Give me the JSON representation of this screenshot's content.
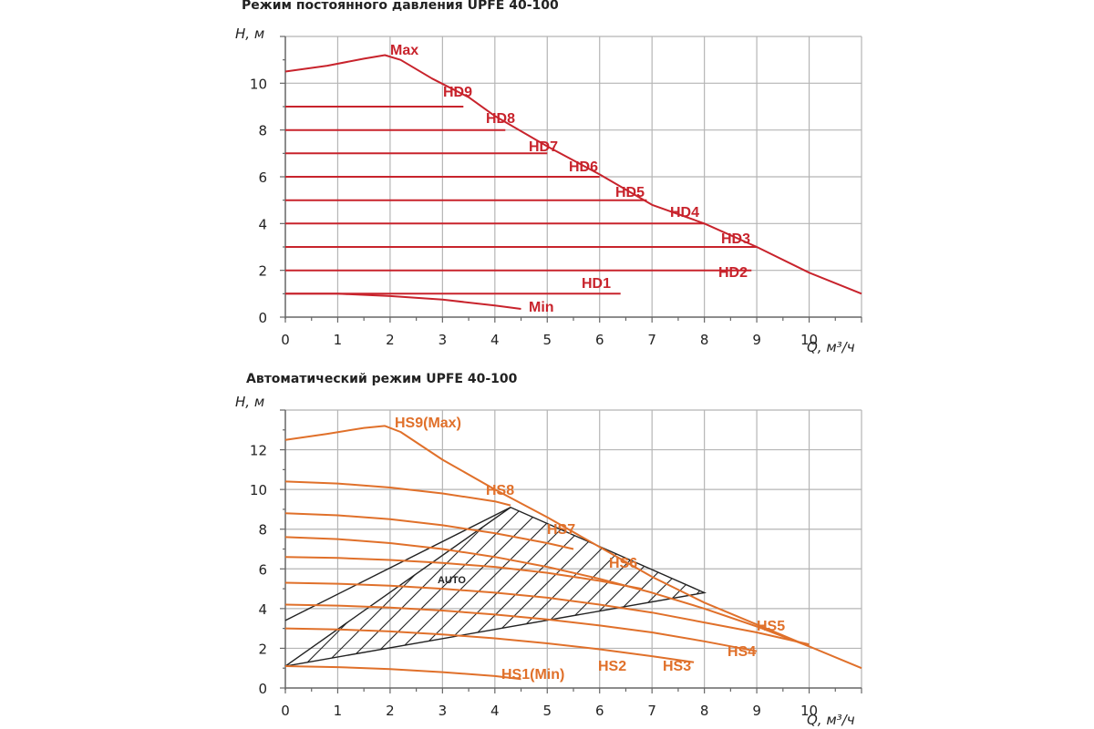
{
  "chart_data": [
    {
      "type": "line",
      "title": "Режим постоянного давления UPFE 40-100",
      "xlabel": "Q, м³/ч",
      "ylabel": "H, м",
      "xlim": [
        0,
        11
      ],
      "ylim": [
        0,
        12
      ],
      "x_ticks": [
        "0",
        "1",
        "2",
        "3",
        "4",
        "5",
        "6",
        "7",
        "8",
        "9",
        "10"
      ],
      "y_ticks": [
        "0",
        "2",
        "4",
        "6",
        "8",
        "10"
      ],
      "grid": true,
      "color": "#c8232c",
      "series": [
        {
          "name": "Max",
          "points": [
            [
              0,
              10.5
            ],
            [
              0.8,
              10.75
            ],
            [
              1.5,
              11.05
            ],
            [
              1.9,
              11.2
            ],
            [
              2.2,
              11.0
            ],
            [
              2.8,
              10.2
            ],
            [
              3.5,
              9.4
            ],
            [
              4,
              8.6
            ],
            [
              5,
              7.3
            ],
            [
              6,
              6.1
            ],
            [
              7,
              4.8
            ],
            [
              8,
              4.0
            ],
            [
              9,
              3.0
            ],
            [
              10,
              1.9
            ],
            [
              11,
              1.0
            ]
          ]
        },
        {
          "name": "HD9",
          "points": [
            [
              0,
              9
            ],
            [
              3.4,
              9
            ]
          ]
        },
        {
          "name": "HD8",
          "points": [
            [
              0,
              8
            ],
            [
              4.2,
              8
            ]
          ]
        },
        {
          "name": "HD7",
          "points": [
            [
              0,
              7
            ],
            [
              5.0,
              7
            ]
          ]
        },
        {
          "name": "HD6",
          "points": [
            [
              0,
              6
            ],
            [
              6.0,
              6
            ]
          ]
        },
        {
          "name": "HD5",
          "points": [
            [
              0,
              5
            ],
            [
              6.9,
              5
            ]
          ]
        },
        {
          "name": "HD4",
          "points": [
            [
              0,
              4
            ],
            [
              8.0,
              4
            ]
          ]
        },
        {
          "name": "HD3",
          "points": [
            [
              0,
              3
            ],
            [
              9.0,
              3
            ]
          ]
        },
        {
          "name": "HD2",
          "points": [
            [
              0,
              2
            ],
            [
              8.9,
              2
            ]
          ]
        },
        {
          "name": "HD1",
          "points": [
            [
              0,
              1
            ],
            [
              6.4,
              1
            ]
          ]
        },
        {
          "name": "Min",
          "points": [
            [
              0,
              1
            ],
            [
              1,
              1.0
            ],
            [
              2,
              0.9
            ],
            [
              3,
              0.75
            ],
            [
              4,
              0.5
            ],
            [
              4.5,
              0.35
            ]
          ]
        }
      ]
    },
    {
      "type": "line",
      "title": "Автоматический режим UPFE 40-100",
      "xlabel": "Q, м³/ч",
      "ylabel": "H, м",
      "xlim": [
        0,
        11
      ],
      "ylim": [
        0,
        14
      ],
      "x_ticks": [
        "0",
        "1",
        "2",
        "3",
        "4",
        "5",
        "6",
        "7",
        "8",
        "9",
        "10"
      ],
      "y_ticks": [
        "0",
        "2",
        "4",
        "6",
        "8",
        "10",
        "12"
      ],
      "grid": true,
      "color": "#e0702a",
      "auto_label": "AUTO",
      "auto_region": [
        [
          0,
          1.1
        ],
        [
          4.3,
          9.1
        ],
        [
          8.0,
          4.8
        ]
      ],
      "auto_top_left": [
        0,
        3.4
      ],
      "series": [
        {
          "name": "HS9(Max)",
          "points": [
            [
              0,
              12.5
            ],
            [
              0.8,
              12.8
            ],
            [
              1.5,
              13.1
            ],
            [
              1.9,
              13.2
            ],
            [
              2.2,
              12.9
            ],
            [
              3,
              11.5
            ],
            [
              4,
              10.0
            ],
            [
              5,
              8.6
            ],
            [
              6,
              7.1
            ],
            [
              7,
              5.6
            ],
            [
              8,
              4.3
            ],
            [
              9,
              3.2
            ],
            [
              10,
              2.1
            ],
            [
              11,
              1.0
            ]
          ]
        },
        {
          "name": "HS8",
          "points": [
            [
              0,
              10.4
            ],
            [
              1,
              10.3
            ],
            [
              2,
              10.1
            ],
            [
              3,
              9.8
            ],
            [
              4,
              9.4
            ],
            [
              4.3,
              9.2
            ]
          ]
        },
        {
          "name": "HS7",
          "points": [
            [
              0,
              8.8
            ],
            [
              1,
              8.7
            ],
            [
              2,
              8.5
            ],
            [
              3,
              8.2
            ],
            [
              4,
              7.8
            ],
            [
              5,
              7.3
            ],
            [
              5.5,
              7.0
            ]
          ]
        },
        {
          "name": "HS6",
          "points": [
            [
              0,
              6.6
            ],
            [
              1,
              6.55
            ],
            [
              2,
              6.45
            ],
            [
              3,
              6.3
            ],
            [
              4,
              6.1
            ],
            [
              5,
              5.8
            ],
            [
              6,
              5.4
            ],
            [
              6.8,
              5.0
            ]
          ]
        },
        {
          "name": "HS5",
          "points": [
            [
              0,
              5.3
            ],
            [
              1,
              5.25
            ],
            [
              2,
              5.15
            ],
            [
              3,
              5.0
            ],
            [
              4,
              4.8
            ],
            [
              5,
              4.55
            ],
            [
              6,
              4.2
            ],
            [
              7,
              3.8
            ],
            [
              8,
              3.3
            ],
            [
              9,
              2.8
            ],
            [
              10,
              2.2
            ]
          ]
        },
        {
          "name": "HS4",
          "points": [
            [
              0,
              4.2
            ],
            [
              1,
              4.15
            ],
            [
              2,
              4.05
            ],
            [
              3,
              3.9
            ],
            [
              4,
              3.7
            ],
            [
              5,
              3.45
            ],
            [
              6,
              3.15
            ],
            [
              7,
              2.8
            ],
            [
              8,
              2.35
            ],
            [
              9,
              1.85
            ]
          ]
        },
        {
          "name": "HS3",
          "points": [
            [
              0,
              3.0
            ],
            [
              1,
              2.95
            ],
            [
              2,
              2.85
            ],
            [
              3,
              2.7
            ],
            [
              4,
              2.5
            ],
            [
              5,
              2.25
            ],
            [
              6,
              1.95
            ],
            [
              7,
              1.6
            ],
            [
              7.8,
              1.3
            ]
          ]
        },
        {
          "name": "HS2",
          "points": [
            [
              0,
              7.6
            ],
            [
              1,
              7.5
            ],
            [
              2,
              7.3
            ],
            [
              3,
              7.0
            ],
            [
              4,
              6.6
            ],
            [
              5,
              6.1
            ],
            [
              6,
              5.5
            ],
            [
              7,
              4.8
            ],
            [
              8,
              4.0
            ],
            [
              9,
              3.1
            ],
            [
              10,
              2.1
            ]
          ]
        },
        {
          "name": "HS1(Min)",
          "points": [
            [
              0,
              1.1
            ],
            [
              1,
              1.05
            ],
            [
              2,
              0.95
            ],
            [
              3,
              0.8
            ],
            [
              4,
              0.6
            ],
            [
              4.5,
              0.45
            ]
          ]
        }
      ]
    }
  ]
}
